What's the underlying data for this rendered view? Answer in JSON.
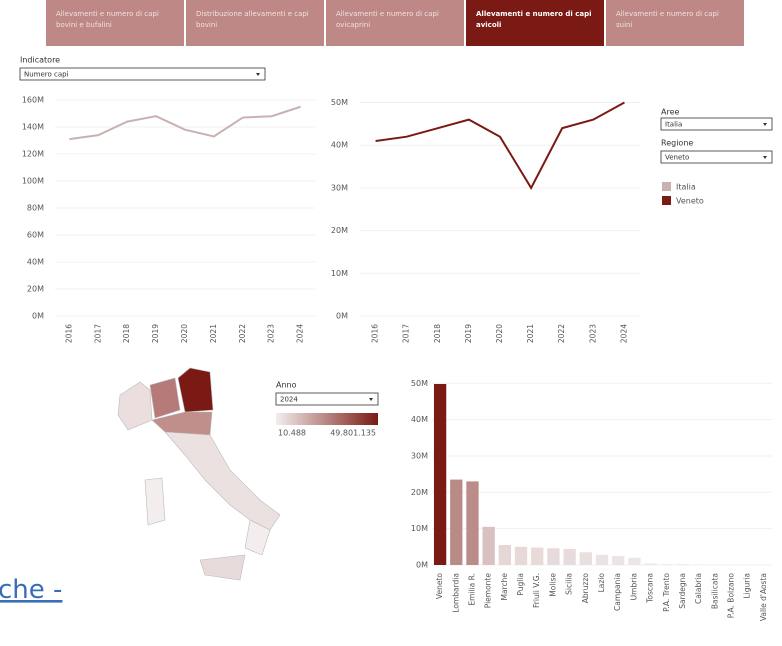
{
  "tabs": [
    "Allevamenti e numero di capi bovini e bufalini",
    "Distribuzione allevamenti e capi bovini",
    "Allevamenti e numero di capi ovicaprini",
    "Allevamenti e numero di capi avicoli",
    "Allevamenti e numero di capi suini"
  ],
  "active_tab": 3,
  "controls": {
    "indicatore": {
      "label": "Indicatore",
      "value": "Numero capi"
    },
    "aree": {
      "label": "Aree",
      "value": "Italia"
    },
    "regione": {
      "label": "Regione",
      "value": "Veneto"
    },
    "anno": {
      "label": "Anno",
      "value": "2024"
    }
  },
  "map_legend": {
    "min": {
      "value": 10488,
      "label": "10.488"
    },
    "max": {
      "value": 49801135,
      "label": "49.801.135"
    },
    "colors": [
      "#f2eeee",
      "#7b1a14"
    ]
  },
  "link_text": "che -",
  "chart_data": [
    {
      "type": "line",
      "categories": [
        "2016",
        "2017",
        "2018",
        "2019",
        "2020",
        "2021",
        "2022",
        "2023",
        "2024"
      ],
      "series": [
        {
          "name": "Italia",
          "color": "#c9b1b1",
          "values": [
            131000000,
            134000000,
            144000000,
            148000000,
            138000000,
            133000000,
            147000000,
            148000000,
            155000000
          ]
        }
      ],
      "ylim": [
        0,
        160000000
      ],
      "yticks": [
        {
          "value": 0,
          "label": "0M"
        },
        {
          "value": 20000000,
          "label": "20M"
        },
        {
          "value": 40000000,
          "label": "40M"
        },
        {
          "value": 60000000,
          "label": "60M"
        },
        {
          "value": 80000000,
          "label": "80M"
        },
        {
          "value": 100000000,
          "label": "100M"
        },
        {
          "value": 120000000,
          "label": "120M"
        },
        {
          "value": 140000000,
          "label": "140M"
        },
        {
          "value": 160000000,
          "label": "160M"
        }
      ],
      "grid": true
    },
    {
      "type": "line",
      "categories": [
        "2016",
        "2017",
        "2018",
        "2019",
        "2020",
        "2021",
        "2022",
        "2023",
        "2024"
      ],
      "series": [
        {
          "name": "Veneto",
          "color": "#7b1a14",
          "values": [
            41000000,
            42000000,
            44000000,
            46000000,
            42000000,
            30000000,
            44000000,
            46000000,
            50000000
          ]
        }
      ],
      "ylim": [
        0,
        52000000
      ],
      "yticks": [
        {
          "value": 0,
          "label": "0M"
        },
        {
          "value": 10000000,
          "label": "10M"
        },
        {
          "value": 20000000,
          "label": "20M"
        },
        {
          "value": 30000000,
          "label": "30M"
        },
        {
          "value": 40000000,
          "label": "40M"
        },
        {
          "value": 50000000,
          "label": "50M"
        }
      ],
      "grid": true
    },
    {
      "type": "bar",
      "categories": [
        "Veneto",
        "Lombardia",
        "Emilia R.",
        "Piemonte",
        "Marche",
        "Puglia",
        "Friuli V.G.",
        "Molise",
        "Sicilia",
        "Abruzzo",
        "Lazio",
        "Campania",
        "Umbria",
        "Toscana",
        "P.A. Trento",
        "Sardegna",
        "Calabria",
        "Basilicata",
        "P.A. Bolzano",
        "Liguria",
        "Valle d'Aosta"
      ],
      "values": [
        49801135,
        23500000,
        23000000,
        10500000,
        5500000,
        5000000,
        4800000,
        4600000,
        4400000,
        3500000,
        2800000,
        2500000,
        2000000,
        500000,
        300000,
        300000,
        200000,
        100000,
        50000,
        30000,
        10488
      ],
      "ylim": [
        0,
        52000000
      ],
      "yticks": [
        {
          "value": 0,
          "label": "0M"
        },
        {
          "value": 10000000,
          "label": "10M"
        },
        {
          "value": 20000000,
          "label": "20M"
        },
        {
          "value": 30000000,
          "label": "30M"
        },
        {
          "value": 40000000,
          "label": "40M"
        },
        {
          "value": 50000000,
          "label": "50M"
        }
      ],
      "grid": true
    }
  ]
}
